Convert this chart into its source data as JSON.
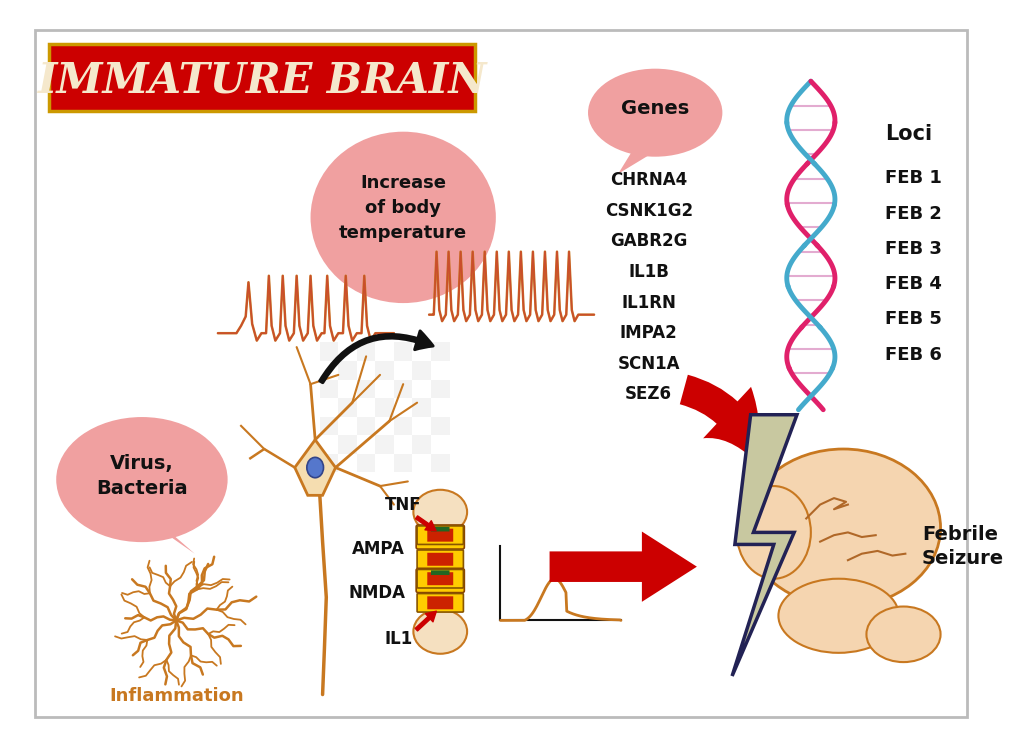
{
  "bg_color": "#ffffff",
  "border_color": "#bbbbbb",
  "title": "IMMATURE BRAIN",
  "title_bg": "#cc0000",
  "title_text_color": "#f5e8cc",
  "title_border_color": "#cc9900",
  "pink_bubble_color": "#f0a0a0",
  "genes_list": [
    "CHRNA4",
    "CSNK1G2",
    "GABR2G",
    "IL1B",
    "IL1RN",
    "IMPA2",
    "SCN1A",
    "SEZ6"
  ],
  "loci_list": [
    "FEB 1",
    "FEB 2",
    "FEB 3",
    "FEB 4",
    "FEB 5",
    "FEB 6"
  ],
  "neuron_color": "#c87820",
  "arrow_red": "#cc0000",
  "lightning_color": "#c8c8a0",
  "brain_color": "#f5d5b0",
  "brain_outline": "#c87820",
  "receptor_yellow": "#ffcc00",
  "receptor_red": "#cc2200",
  "dna_pink": "#e0206a",
  "dna_blue": "#44aacc"
}
